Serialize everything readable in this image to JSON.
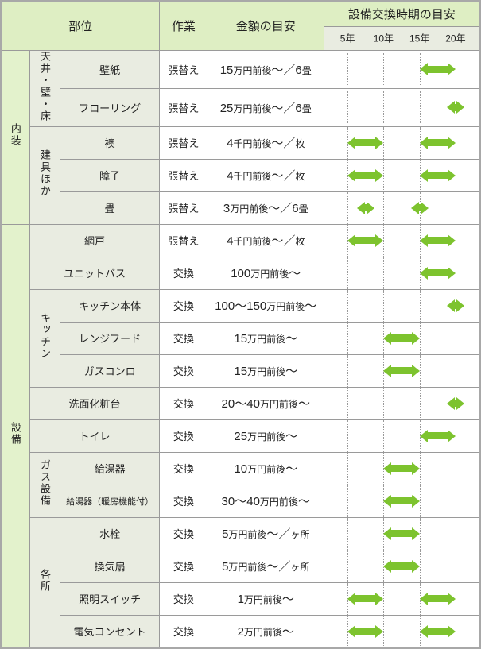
{
  "colors": {
    "arrow_green": "#7dc32e",
    "header_green": "#deeec3",
    "group_green": "#e3f2cc",
    "cell_pale": "#e9ece1",
    "border_gray": "#9a9a9a"
  },
  "table": {
    "header": {
      "col_part": "部位",
      "col_work": "作業",
      "col_cost": "金額の目安",
      "col_timeline": "設備交換時期の目安",
      "years": [
        "5年",
        "10年",
        "15年",
        "20年"
      ]
    },
    "group1": [
      {
        "label": "内装",
        "start": 0,
        "span": 5
      },
      {
        "label": "設備",
        "start": 5,
        "span": 13
      }
    ],
    "group2": [
      {
        "label": "天井・壁・床",
        "start": 0,
        "span": 2
      },
      {
        "label": "建具ほか",
        "start": 2,
        "span": 3
      },
      {
        "label": "キッチン",
        "start": 7,
        "span": 3
      },
      {
        "label": "ガス設備",
        "start": 12,
        "span": 2
      },
      {
        "label": "各所",
        "start": 14,
        "span": 4
      }
    ],
    "rows": [
      {
        "item": "壁紙",
        "work": "張替え",
        "cost": "15万円前後〜／6畳",
        "arrows": [
          {
            "from": 2,
            "to": 3
          }
        ]
      },
      {
        "item": "フローリング",
        "work": "張替え",
        "cost": "25万円前後〜／6畳",
        "arrows": [
          {
            "at": 3
          }
        ]
      },
      {
        "item": "襖",
        "work": "張替え",
        "cost": "4千円前後〜／枚",
        "arrows": [
          {
            "from": 0,
            "to": 1
          },
          {
            "from": 2,
            "to": 3
          }
        ]
      },
      {
        "item": "障子",
        "work": "張替え",
        "cost": "4千円前後〜／枚",
        "arrows": [
          {
            "from": 0,
            "to": 1
          },
          {
            "from": 2,
            "to": 3
          }
        ]
      },
      {
        "item": "畳",
        "work": "張替え",
        "cost": "3万円前後〜／6畳",
        "arrows": [
          {
            "at": 0.5
          },
          {
            "at": 2
          }
        ]
      },
      {
        "item": "網戸",
        "work": "張替え",
        "cost": "4千円前後〜／枚",
        "wide": true,
        "arrows": [
          {
            "from": 0,
            "to": 1
          },
          {
            "from": 2,
            "to": 3
          }
        ]
      },
      {
        "item": "ユニットバス",
        "work": "交換",
        "cost": "100万円前後〜",
        "wide": true,
        "arrows": [
          {
            "from": 2,
            "to": 3
          }
        ]
      },
      {
        "item": "キッチン本体",
        "work": "交換",
        "cost": "100〜150万円前後〜",
        "arrows": [
          {
            "at": 3
          }
        ]
      },
      {
        "item": "レンジフード",
        "work": "交換",
        "cost": "15万円前後〜",
        "arrows": [
          {
            "from": 1,
            "to": 2
          }
        ]
      },
      {
        "item": "ガスコンロ",
        "work": "交換",
        "cost": "15万円前後〜",
        "arrows": [
          {
            "from": 1,
            "to": 2
          }
        ]
      },
      {
        "item": "洗面化粧台",
        "work": "交換",
        "cost": "20〜40万円前後〜",
        "wide": true,
        "arrows": [
          {
            "at": 3
          }
        ]
      },
      {
        "item": "トイレ",
        "work": "交換",
        "cost": "25万円前後〜",
        "wide": true,
        "arrows": [
          {
            "from": 2,
            "to": 3
          }
        ]
      },
      {
        "item": "給湯器",
        "work": "交換",
        "cost": "10万円前後〜",
        "arrows": [
          {
            "from": 1,
            "to": 2
          }
        ]
      },
      {
        "item": "給湯器（暖房機能付）",
        "work": "交換",
        "cost": "30〜40万円前後〜",
        "arrows": [
          {
            "from": 1,
            "to": 2
          }
        ]
      },
      {
        "item": "水栓",
        "work": "交換",
        "cost": "5万円前後〜／ヶ所",
        "arrows": [
          {
            "from": 1,
            "to": 2
          }
        ]
      },
      {
        "item": "換気扇",
        "work": "交換",
        "cost": "5万円前後〜／ヶ所",
        "arrows": [
          {
            "from": 1,
            "to": 2
          }
        ]
      },
      {
        "item": "照明スイッチ",
        "work": "交換",
        "cost": "1万円前後〜",
        "arrows": [
          {
            "from": 0,
            "to": 1
          },
          {
            "from": 2,
            "to": 3
          }
        ]
      },
      {
        "item": "電気コンセント",
        "work": "交換",
        "cost": "2万円前後〜",
        "arrows": [
          {
            "from": 0,
            "to": 1
          },
          {
            "from": 2,
            "to": 3
          }
        ]
      }
    ]
  }
}
